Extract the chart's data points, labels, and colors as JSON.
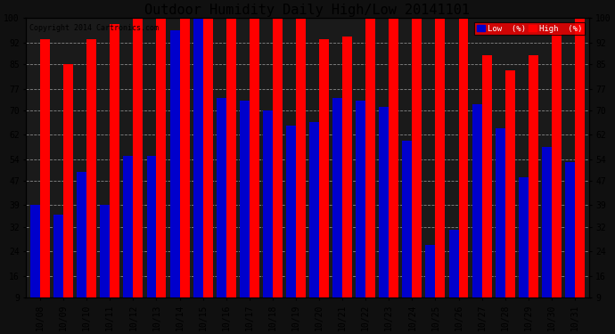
{
  "title": "Outdoor Humidity Daily High/Low 20141101",
  "copyright": "Copyright 2014 Cartronics.com",
  "dates": [
    "10/08",
    "10/09",
    "10/10",
    "10/11",
    "10/12",
    "10/13",
    "10/14",
    "10/15",
    "10/16",
    "10/17",
    "10/18",
    "10/19",
    "10/20",
    "10/21",
    "10/22",
    "10/23",
    "10/24",
    "10/25",
    "10/26",
    "10/27",
    "10/28",
    "10/29",
    "10/30",
    "10/31"
  ],
  "high": [
    84,
    76,
    84,
    89,
    91,
    100,
    100,
    100,
    100,
    100,
    91,
    94,
    84,
    85,
    100,
    94,
    100,
    93,
    100,
    79,
    74,
    79,
    86,
    91
  ],
  "low": [
    30,
    27,
    41,
    30,
    46,
    46,
    87,
    91,
    65,
    64,
    61,
    56,
    57,
    65,
    64,
    62,
    51,
    17,
    22,
    63,
    55,
    39,
    49,
    44
  ],
  "bg_color": "#101010",
  "plot_bg_color": "#1a1a1a",
  "high_color": "#ff0000",
  "low_color": "#0000cc",
  "grid_color": "#888888",
  "ylim": [
    9,
    100
  ],
  "yticks": [
    9,
    16,
    24,
    32,
    39,
    47,
    54,
    62,
    70,
    77,
    85,
    92,
    100
  ],
  "bar_width": 0.42,
  "title_fontsize": 11,
  "tick_fontsize": 7
}
